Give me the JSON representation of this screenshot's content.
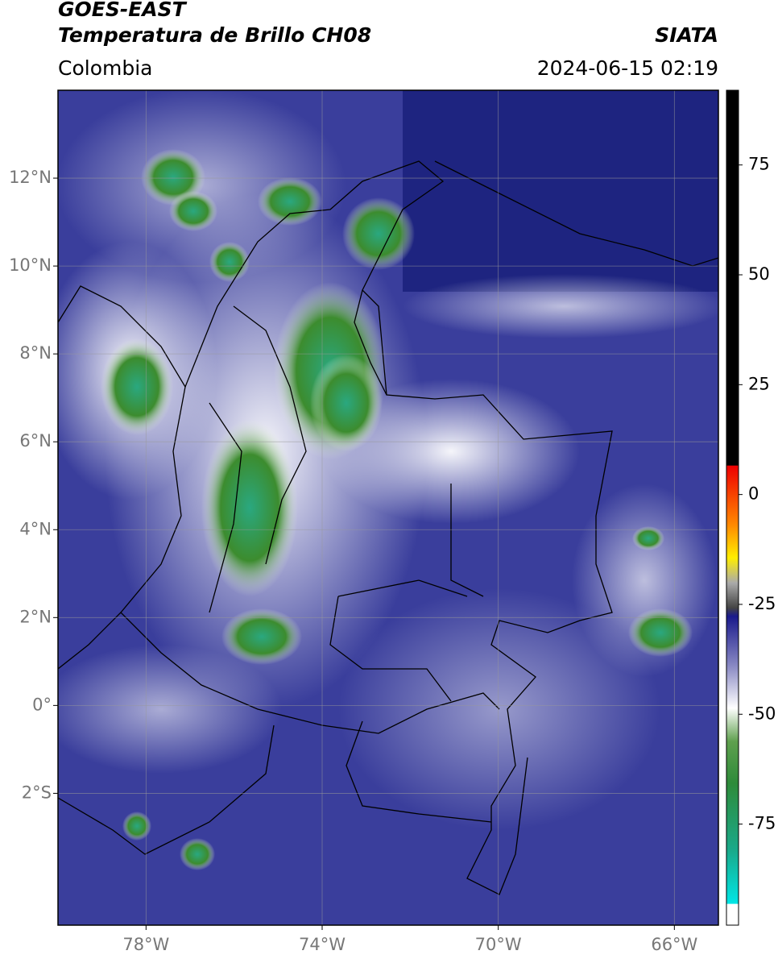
{
  "header": {
    "title": "GOES-EAST",
    "subtitle": "Temperatura de Brillo CH08",
    "brand": "SIATA",
    "region": "Colombia",
    "timestamp": "2024-06-15 02:19"
  },
  "map": {
    "xlim": [
      -80,
      -65
    ],
    "ylim": [
      -5,
      14
    ],
    "xticks": [
      {
        "value": -78,
        "label": "78°W"
      },
      {
        "value": -74,
        "label": "74°W"
      },
      {
        "value": -70,
        "label": "70°W"
      },
      {
        "value": -66,
        "label": "66°W"
      }
    ],
    "yticks": [
      {
        "value": 12,
        "label": "12°N"
      },
      {
        "value": 10,
        "label": "10°N"
      },
      {
        "value": 8,
        "label": "8°N"
      },
      {
        "value": 6,
        "label": "6°N"
      },
      {
        "value": 4,
        "label": "4°N"
      },
      {
        "value": 2,
        "label": "2°N"
      },
      {
        "value": 0,
        "label": "0°"
      },
      {
        "value": -2,
        "label": "2°S"
      }
    ],
    "grid": true
  },
  "colorbar": {
    "lim": [
      -98,
      92
    ],
    "ticks": [
      75,
      50,
      25,
      0,
      -25,
      -50,
      -75
    ]
  }
}
